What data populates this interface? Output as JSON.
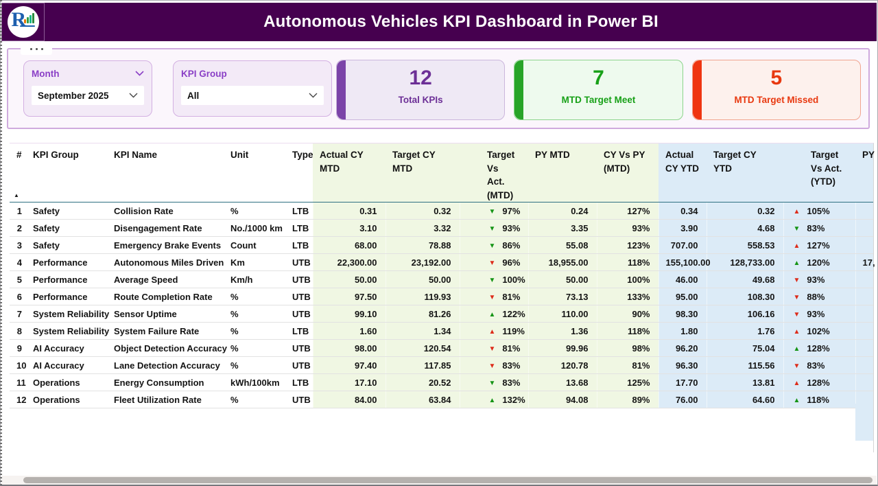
{
  "header": {
    "title": "Autonomous Vehicles KPI Dashboard in Power BI",
    "logo_letter": "R"
  },
  "filters": {
    "month": {
      "label": "Month",
      "value": "September 2025"
    },
    "kpi_group": {
      "label": "KPI Group",
      "value": "All"
    }
  },
  "cards": [
    {
      "value": "12",
      "label": "Total KPIs",
      "accent": "#7b44a8",
      "bg": "#efe9f5",
      "border": "#cbb6dc",
      "fg": "#6c2f96"
    },
    {
      "value": "7",
      "label": "MTD Target Meet",
      "accent": "#28a428",
      "bg": "#eefaee",
      "border": "#8cd48c",
      "fg": "#17a017"
    },
    {
      "value": "5",
      "label": "MTD Target Missed",
      "accent": "#ef3511",
      "bg": "#fdf1ed",
      "border": "#f0a48e",
      "fg": "#e8380f"
    }
  ],
  "glyphs": {
    "up": "▲",
    "down": "▼",
    "sort_asc": "▲"
  },
  "table": {
    "indicator_colors": {
      "green": "#159415",
      "red": "#dd2c1a"
    },
    "columns": [
      {
        "key": "idx",
        "label": "#",
        "zone": "plain",
        "align": "right",
        "kind": "text"
      },
      {
        "key": "group",
        "label": "KPI Group",
        "zone": "plain",
        "align": "left",
        "kind": "text"
      },
      {
        "key": "name",
        "label": "KPI Name",
        "zone": "plain",
        "align": "left",
        "kind": "text"
      },
      {
        "key": "unit",
        "label": "Unit",
        "zone": "plain",
        "align": "left",
        "kind": "text"
      },
      {
        "key": "type",
        "label": "Type",
        "zone": "plain",
        "align": "left",
        "kind": "text"
      },
      {
        "key": "actual_mtd",
        "label": "Actual CY\nMTD",
        "zone": "green",
        "align": "right",
        "kind": "text"
      },
      {
        "key": "target_mtd",
        "label": "Target CY\nMTD",
        "zone": "green",
        "align": "right",
        "kind": "text"
      },
      {
        "key": "tva_mtd",
        "label": "Target Vs\nAct.\n(MTD)",
        "zone": "green",
        "align": "left",
        "kind": "indicator"
      },
      {
        "key": "py_mtd",
        "label": "PY MTD",
        "zone": "green",
        "align": "right",
        "kind": "text"
      },
      {
        "key": "cypy_mtd",
        "label": "CY Vs PY\n(MTD)",
        "zone": "green",
        "align": "right",
        "kind": "text"
      },
      {
        "key": "actual_ytd",
        "label": "Actual\nCY YTD",
        "zone": "blue",
        "align": "right",
        "kind": "text"
      },
      {
        "key": "target_ytd",
        "label": "Target CY\nYTD",
        "zone": "blue",
        "align": "right",
        "kind": "text"
      },
      {
        "key": "tva_ytd",
        "label": "Target\nVs Act.\n(YTD)",
        "zone": "blue",
        "align": "left",
        "kind": "indicator"
      },
      {
        "key": "py_ytd",
        "label": "PY",
        "zone": "blue",
        "align": "left",
        "kind": "text"
      }
    ],
    "rows": [
      {
        "idx": "1",
        "group": "Safety",
        "name": "Collision Rate",
        "unit": "%",
        "type": "LTB",
        "actual_mtd": "0.31",
        "target_mtd": "0.32",
        "tva_mtd": {
          "dir": "down",
          "color": "green",
          "pct": "97%"
        },
        "py_mtd": "0.24",
        "cypy_mtd": "127%",
        "actual_ytd": "0.34",
        "target_ytd": "0.32",
        "tva_ytd": {
          "dir": "up",
          "color": "red",
          "pct": "105%"
        },
        "py_ytd": ""
      },
      {
        "idx": "2",
        "group": "Safety",
        "name": "Disengagement Rate",
        "unit": "No./1000 km",
        "type": "LTB",
        "actual_mtd": "3.10",
        "target_mtd": "3.32",
        "tva_mtd": {
          "dir": "down",
          "color": "green",
          "pct": "93%"
        },
        "py_mtd": "3.35",
        "cypy_mtd": "93%",
        "actual_ytd": "3.90",
        "target_ytd": "4.68",
        "tva_ytd": {
          "dir": "down",
          "color": "green",
          "pct": "83%"
        },
        "py_ytd": ""
      },
      {
        "idx": "3",
        "group": "Safety",
        "name": "Emergency Brake Events",
        "unit": "Count",
        "type": "LTB",
        "actual_mtd": "68.00",
        "target_mtd": "78.88",
        "tva_mtd": {
          "dir": "down",
          "color": "green",
          "pct": "86%"
        },
        "py_mtd": "55.08",
        "cypy_mtd": "123%",
        "actual_ytd": "707.00",
        "target_ytd": "558.53",
        "tva_ytd": {
          "dir": "up",
          "color": "red",
          "pct": "127%"
        },
        "py_ytd": ""
      },
      {
        "idx": "4",
        "group": "Performance",
        "name": "Autonomous Miles Driven",
        "unit": "Km",
        "type": "UTB",
        "actual_mtd": "22,300.00",
        "target_mtd": "23,192.00",
        "tva_mtd": {
          "dir": "down",
          "color": "red",
          "pct": "96%"
        },
        "py_mtd": "18,955.00",
        "cypy_mtd": "118%",
        "actual_ytd": "155,100.00",
        "target_ytd": "128,733.00",
        "tva_ytd": {
          "dir": "up",
          "color": "green",
          "pct": "120%"
        },
        "py_ytd": "17,"
      },
      {
        "idx": "5",
        "group": "Performance",
        "name": "Average Speed",
        "unit": "Km/h",
        "type": "UTB",
        "actual_mtd": "50.00",
        "target_mtd": "50.00",
        "tva_mtd": {
          "dir": "down",
          "color": "green",
          "pct": "100%"
        },
        "py_mtd": "50.00",
        "cypy_mtd": "100%",
        "actual_ytd": "46.00",
        "target_ytd": "49.68",
        "tva_ytd": {
          "dir": "down",
          "color": "red",
          "pct": "93%"
        },
        "py_ytd": ""
      },
      {
        "idx": "6",
        "group": "Performance",
        "name": "Route Completion Rate",
        "unit": "%",
        "type": "UTB",
        "actual_mtd": "97.50",
        "target_mtd": "119.93",
        "tva_mtd": {
          "dir": "down",
          "color": "red",
          "pct": "81%"
        },
        "py_mtd": "73.13",
        "cypy_mtd": "133%",
        "actual_ytd": "95.00",
        "target_ytd": "108.30",
        "tva_ytd": {
          "dir": "down",
          "color": "red",
          "pct": "88%"
        },
        "py_ytd": ""
      },
      {
        "idx": "7",
        "group": "System Reliability",
        "name": "Sensor Uptime",
        "unit": "%",
        "type": "UTB",
        "actual_mtd": "99.10",
        "target_mtd": "81.26",
        "tva_mtd": {
          "dir": "up",
          "color": "green",
          "pct": "122%"
        },
        "py_mtd": "110.00",
        "cypy_mtd": "90%",
        "actual_ytd": "98.30",
        "target_ytd": "106.16",
        "tva_ytd": {
          "dir": "down",
          "color": "red",
          "pct": "93%"
        },
        "py_ytd": ""
      },
      {
        "idx": "8",
        "group": "System Reliability",
        "name": "System Failure Rate",
        "unit": "%",
        "type": "LTB",
        "actual_mtd": "1.60",
        "target_mtd": "1.34",
        "tva_mtd": {
          "dir": "up",
          "color": "red",
          "pct": "119%"
        },
        "py_mtd": "1.36",
        "cypy_mtd": "118%",
        "actual_ytd": "1.80",
        "target_ytd": "1.76",
        "tva_ytd": {
          "dir": "up",
          "color": "red",
          "pct": "102%"
        },
        "py_ytd": ""
      },
      {
        "idx": "9",
        "group": "AI Accuracy",
        "name": "Object Detection Accuracy",
        "unit": "%",
        "type": "UTB",
        "actual_mtd": "98.00",
        "target_mtd": "120.54",
        "tva_mtd": {
          "dir": "down",
          "color": "red",
          "pct": "81%"
        },
        "py_mtd": "99.96",
        "cypy_mtd": "98%",
        "actual_ytd": "96.20",
        "target_ytd": "75.04",
        "tva_ytd": {
          "dir": "up",
          "color": "green",
          "pct": "128%"
        },
        "py_ytd": ""
      },
      {
        "idx": "10",
        "group": "AI Accuracy",
        "name": "Lane Detection Accuracy",
        "unit": "%",
        "type": "UTB",
        "actual_mtd": "97.40",
        "target_mtd": "117.85",
        "tva_mtd": {
          "dir": "down",
          "color": "red",
          "pct": "83%"
        },
        "py_mtd": "120.78",
        "cypy_mtd": "81%",
        "actual_ytd": "96.30",
        "target_ytd": "115.56",
        "tva_ytd": {
          "dir": "down",
          "color": "red",
          "pct": "83%"
        },
        "py_ytd": ""
      },
      {
        "idx": "11",
        "group": "Operations",
        "name": "Energy Consumption",
        "unit": "kWh/100km",
        "type": "LTB",
        "actual_mtd": "17.10",
        "target_mtd": "20.52",
        "tva_mtd": {
          "dir": "down",
          "color": "green",
          "pct": "83%"
        },
        "py_mtd": "13.68",
        "cypy_mtd": "125%",
        "actual_ytd": "17.70",
        "target_ytd": "13.81",
        "tva_ytd": {
          "dir": "up",
          "color": "red",
          "pct": "128%"
        },
        "py_ytd": ""
      },
      {
        "idx": "12",
        "group": "Operations",
        "name": "Fleet Utilization Rate",
        "unit": "%",
        "type": "UTB",
        "actual_mtd": "84.00",
        "target_mtd": "63.84",
        "tva_mtd": {
          "dir": "up",
          "color": "green",
          "pct": "132%"
        },
        "py_mtd": "94.08",
        "cypy_mtd": "89%",
        "actual_ytd": "76.00",
        "target_ytd": "64.60",
        "tva_ytd": {
          "dir": "up",
          "color": "green",
          "pct": "118%"
        },
        "py_ytd": ""
      }
    ]
  }
}
